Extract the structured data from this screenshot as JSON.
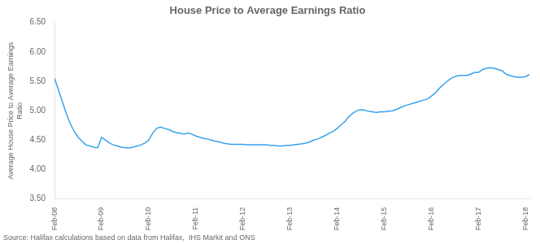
{
  "chart_data": {
    "type": "line",
    "title": "House Price to Average Earnings Ratio",
    "y_label": "Average House Price to Average Earnings\nRatio",
    "annotations": [
      "Source: Halifax calculations based on data from Halifax,  IHS Markit and ONS"
    ],
    "categories": [
      "Feb-08",
      null,
      null,
      null,
      null,
      null,
      null,
      null,
      null,
      null,
      null,
      null,
      "Feb-09",
      null,
      null,
      null,
      null,
      null,
      null,
      null,
      null,
      null,
      null,
      null,
      "Feb-10",
      null,
      null,
      null,
      null,
      null,
      null,
      null,
      null,
      null,
      null,
      null,
      "Feb-11",
      null,
      null,
      null,
      null,
      null,
      null,
      null,
      null,
      null,
      null,
      null,
      "Feb-12",
      null,
      null,
      null,
      null,
      null,
      null,
      null,
      null,
      null,
      null,
      null,
      "Feb-13",
      null,
      null,
      null,
      null,
      null,
      null,
      null,
      null,
      null,
      null,
      null,
      "Feb-14",
      null,
      null,
      null,
      null,
      null,
      null,
      null,
      null,
      null,
      null,
      null,
      "Feb-15",
      null,
      null,
      null,
      null,
      null,
      null,
      null,
      null,
      null,
      null,
      null,
      "Feb-16",
      null,
      null,
      null,
      null,
      null,
      null,
      null,
      null,
      null,
      null,
      null,
      "Feb-17",
      null,
      null,
      null,
      null,
      null,
      null,
      null,
      null,
      null,
      null,
      null,
      "Feb-18",
      null
    ],
    "values": [
      5.55,
      5.35,
      5.15,
      4.95,
      4.78,
      4.65,
      4.55,
      4.48,
      4.42,
      4.4,
      4.38,
      4.37,
      4.55,
      4.5,
      4.45,
      4.42,
      4.4,
      4.38,
      4.37,
      4.37,
      4.38,
      4.4,
      4.42,
      4.45,
      4.5,
      4.62,
      4.7,
      4.72,
      4.7,
      4.68,
      4.65,
      4.63,
      4.62,
      4.6,
      4.62,
      4.6,
      4.57,
      4.55,
      4.53,
      4.52,
      4.5,
      4.48,
      4.47,
      4.45,
      4.44,
      4.43,
      4.43,
      4.43,
      4.43,
      4.42,
      4.42,
      4.42,
      4.42,
      4.42,
      4.42,
      4.41,
      4.41,
      4.4,
      4.4,
      4.41,
      4.41,
      4.42,
      4.43,
      4.44,
      4.45,
      4.47,
      4.5,
      4.52,
      4.55,
      4.58,
      4.62,
      4.65,
      4.7,
      4.76,
      4.82,
      4.9,
      4.96,
      5.0,
      5.02,
      5.01,
      4.99,
      4.98,
      4.97,
      4.98,
      4.98,
      4.99,
      5.0,
      5.02,
      5.05,
      5.08,
      5.1,
      5.12,
      5.14,
      5.16,
      5.18,
      5.2,
      5.25,
      5.3,
      5.38,
      5.44,
      5.5,
      5.55,
      5.58,
      5.6,
      5.6,
      5.6,
      5.62,
      5.65,
      5.65,
      5.7,
      5.72,
      5.73,
      5.72,
      5.7,
      5.68,
      5.62,
      5.6,
      5.58,
      5.57,
      5.57,
      5.58,
      5.62
    ],
    "ylim": [
      3.5,
      6.5
    ],
    "yticks": [
      {
        "value": 3.5,
        "label": "3.50"
      },
      {
        "value": 4.0,
        "label": "4.00"
      },
      {
        "value": 4.5,
        "label": "4.50"
      },
      {
        "value": 5.0,
        "label": "5.00"
      },
      {
        "value": 5.5,
        "label": "5.50"
      },
      {
        "value": 6.0,
        "label": "6.00"
      },
      {
        "value": 6.5,
        "label": "6.50"
      }
    ],
    "grid": false
  }
}
